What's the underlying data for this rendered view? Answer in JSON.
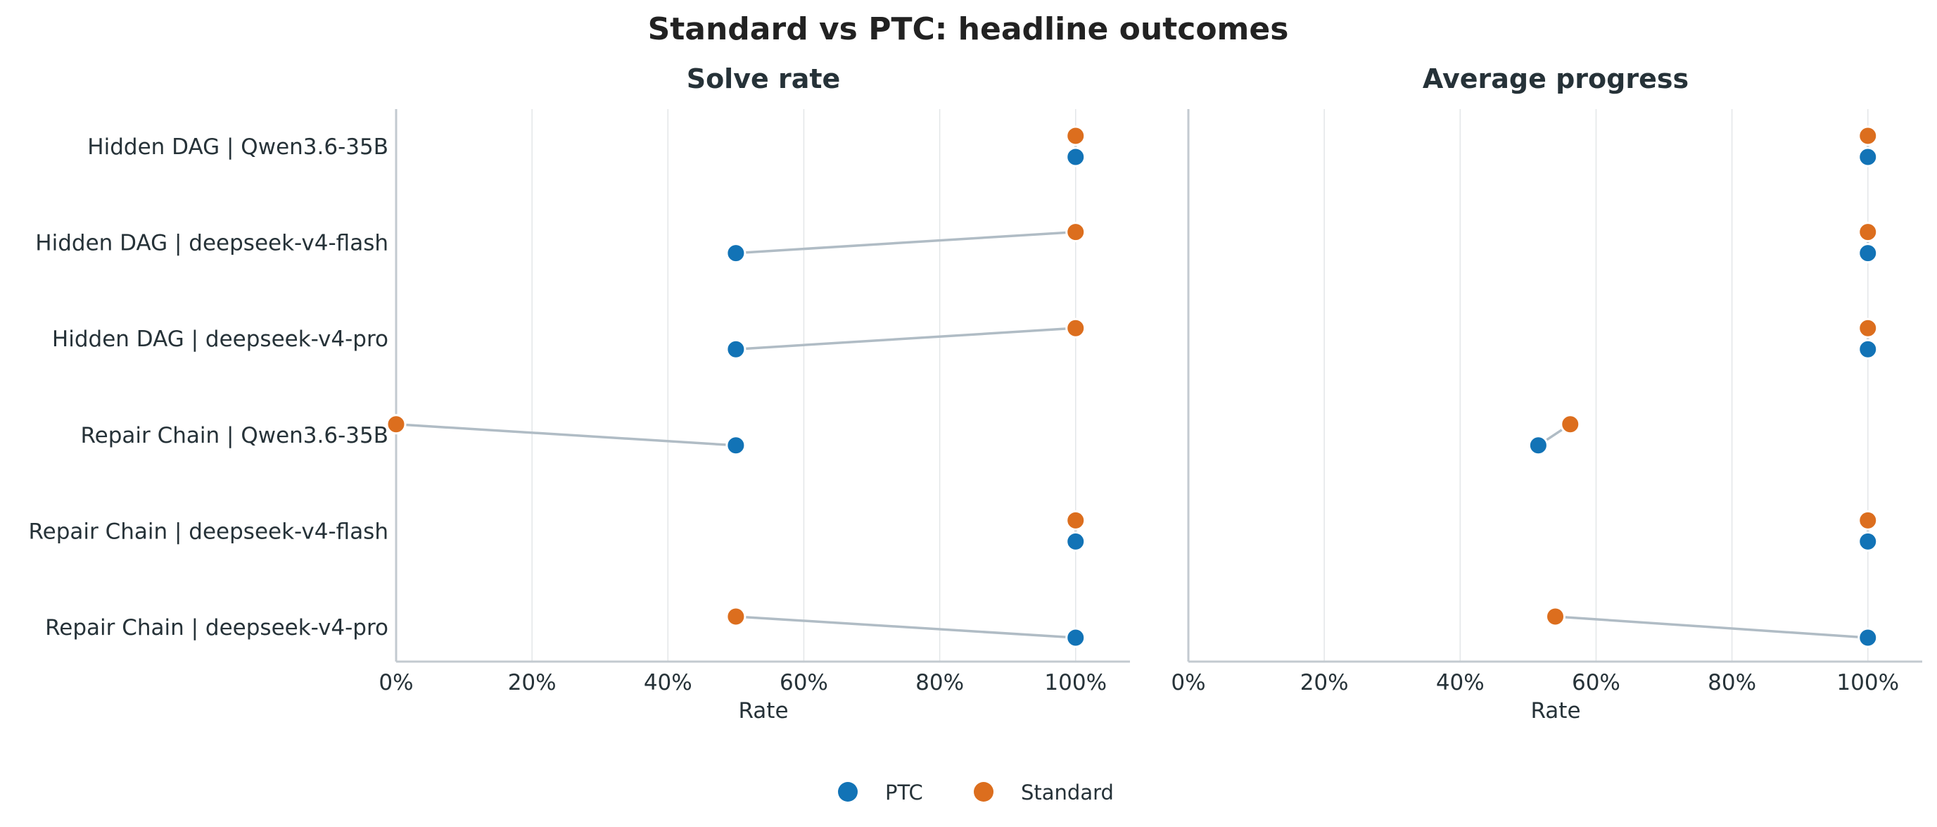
{
  "title": "Standard vs PTC: headline outcomes",
  "legend": {
    "position": "bottom-center",
    "items": [
      {
        "name": "PTC",
        "color": "#1273b6"
      },
      {
        "name": "Standard",
        "color": "#dc6e1e"
      }
    ]
  },
  "connector_color": "#b0bcc5",
  "chart_data": [
    {
      "type": "scatter",
      "title": "Solve rate",
      "xlabel": "Rate",
      "ylabel": "",
      "xlim": [
        0,
        1.08
      ],
      "xticks": [
        "0%",
        "20%",
        "40%",
        "60%",
        "80%",
        "100%"
      ],
      "grid": "vertical",
      "categories": [
        "Hidden DAG | Qwen3.6-35B",
        "Hidden DAG | deepseek-v4-flash",
        "Hidden DAG | deepseek-v4-pro",
        "Repair Chain | Qwen3.6-35B",
        "Repair Chain | deepseek-v4-flash",
        "Repair Chain | deepseek-v4-pro"
      ],
      "series": [
        {
          "name": "PTC",
          "values": [
            1.0,
            0.5,
            0.5,
            0.5,
            1.0,
            1.0
          ]
        },
        {
          "name": "Standard",
          "values": [
            1.0,
            1.0,
            1.0,
            0.0,
            1.0,
            0.5
          ]
        }
      ]
    },
    {
      "type": "scatter",
      "title": "Average progress",
      "xlabel": "Rate",
      "ylabel": "",
      "xlim": [
        0,
        1.08
      ],
      "xticks": [
        "0%",
        "20%",
        "40%",
        "60%",
        "80%",
        "100%"
      ],
      "grid": "vertical",
      "categories": [
        "Hidden DAG | Qwen3.6-35B",
        "Hidden DAG | deepseek-v4-flash",
        "Hidden DAG | deepseek-v4-pro",
        "Repair Chain | Qwen3.6-35B",
        "Repair Chain | deepseek-v4-flash",
        "Repair Chain | deepseek-v4-pro"
      ],
      "series": [
        {
          "name": "PTC",
          "values": [
            1.0,
            1.0,
            1.0,
            0.515,
            1.0,
            1.0
          ]
        },
        {
          "name": "Standard",
          "values": [
            1.0,
            1.0,
            1.0,
            0.562,
            1.0,
            0.54
          ]
        }
      ]
    }
  ]
}
